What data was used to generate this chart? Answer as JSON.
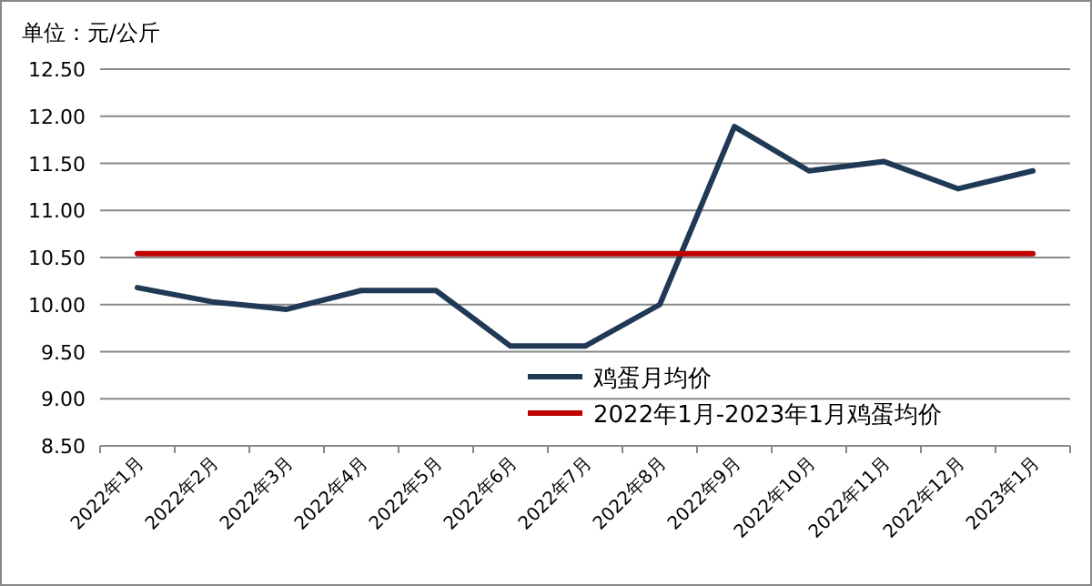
{
  "chart_data": {
    "type": "line",
    "ylabel": "单位：元/公斤",
    "categories": [
      "2022年1月",
      "2022年2月",
      "2022年3月",
      "2022年4月",
      "2022年5月",
      "2022年6月",
      "2022年7月",
      "2022年8月",
      "2022年9月",
      "2022年10月",
      "2022年11月",
      "2022年12月",
      "2023年1月"
    ],
    "series": [
      {
        "name": "鸡蛋月均价",
        "color": "#203a56",
        "values": [
          10.18,
          10.03,
          9.95,
          10.15,
          10.15,
          9.56,
          9.56,
          10.0,
          11.89,
          11.42,
          11.52,
          11.23,
          11.42
        ]
      },
      {
        "name": "2022年1月-2023年1月鸡蛋均价",
        "color": "#c00000",
        "values": [
          10.54,
          10.54,
          10.54,
          10.54,
          10.54,
          10.54,
          10.54,
          10.54,
          10.54,
          10.54,
          10.54,
          10.54,
          10.54
        ]
      }
    ],
    "ylim": [
      8.5,
      12.5
    ],
    "yticks": [
      {
        "value": 8.5,
        "label": "8.50"
      },
      {
        "value": 9,
        "label": "9.00"
      },
      {
        "value": 9.5,
        "label": "9.50"
      },
      {
        "value": 10,
        "label": "10.00"
      },
      {
        "value": 10.5,
        "label": "10.50"
      },
      {
        "value": 11,
        "label": "11.00"
      },
      {
        "value": 11.5,
        "label": "11.50"
      },
      {
        "value": 12,
        "label": "12.00"
      },
      {
        "value": 12.5,
        "label": "12.50"
      }
    ],
    "grid": "y",
    "legend": "bottom",
    "marker": "none",
    "line_style": "solid"
  }
}
